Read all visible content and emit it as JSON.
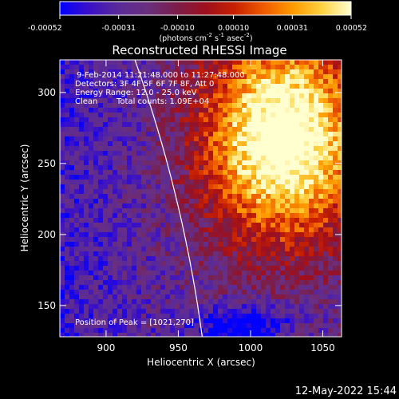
{
  "chart_data": {
    "type": "heatmap",
    "title": "Reconstructed RHESSI Image",
    "xlabel": "Heliocentric X (arcsec)",
    "ylabel": "Heliocentric Y (arcsec)",
    "xlim": [
      868,
      1063
    ],
    "ylim": [
      128,
      323
    ],
    "xticks": [
      900,
      950,
      1000,
      1050
    ],
    "yticks": [
      150,
      200,
      250,
      300
    ],
    "colorbar": {
      "label_main": "(photons cm",
      "sup1": "-2",
      "label_mid": " s",
      "sup2": "-1",
      "label_end": " asec",
      "sup3": "-2",
      "label_close": ")",
      "range": [
        -0.00052,
        0.00052
      ],
      "ticks": [
        "-0.00052",
        "-0.00031",
        "-0.00010",
        "0.00010",
        "0.00031",
        "0.00052"
      ],
      "tick_values": [
        -0.00052,
        -0.00031,
        -0.0001,
        0.0001,
        0.00031,
        0.00052
      ]
    },
    "colormap": [
      "#0000ff",
      "#3a10c8",
      "#5a2a98",
      "#6a2f80",
      "#7a1e4a",
      "#9e0f1e",
      "#c82000",
      "#ef5a00",
      "#ff9a00",
      "#ffd240",
      "#ffffd0"
    ],
    "peak": [
      1021,
      270
    ],
    "limb_visible": true
  },
  "annotations": {
    "time_range": "9-Feb-2014 11:21:48.000 to 11:27:48.000",
    "detectors": "Detectors: 3F 4F 5F 6F 7F 8F, Att 0",
    "energy_range": "Energy Range: 12.0 - 25.0 keV",
    "clean_label": "Clean",
    "total_counts": "Total counts: 1.09E+04",
    "peak_text": "Position of Peak = [1021,270]"
  },
  "footer": {
    "timestamp": "12-May-2022 15:44"
  }
}
